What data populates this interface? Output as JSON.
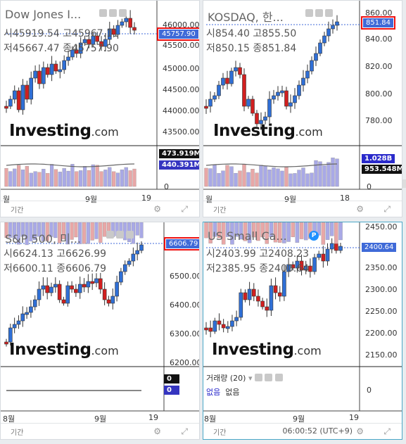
{
  "charts": [
    {
      "title": "Dow Jones I...",
      "ohlc": {
        "open_label": "시",
        "open": "45919.54",
        "high_label": "고",
        "high": "45967.11",
        "low_label": "저",
        "low": "45667.47",
        "close_label": "종",
        "close": "45757.90"
      },
      "price": "45757.90",
      "y_ticks": [
        "46000.00",
        "45500.00",
        "45000.00",
        "44500.00",
        "44000.00",
        "43500.00"
      ],
      "volume_tags": [
        "473.919M",
        "440.391M"
      ],
      "vol_zero": "0",
      "x_ticks": [
        "월",
        "9월",
        "19"
      ],
      "footer_label": "기간"
    },
    {
      "title": "KOSDAQ, 한...",
      "ohlc": {
        "open_label": "시",
        "open": "854.40",
        "high_label": "고",
        "high": "855.50",
        "low_label": "저",
        "low": "850.15",
        "close_label": "종",
        "close": "851.84"
      },
      "price": "851.84",
      "y_ticks": [
        "860.00",
        "840.00",
        "820.00",
        "800.00",
        "780.00"
      ],
      "volume_tags": [
        "1.028B",
        "953.548M"
      ],
      "vol_zero": "0",
      "x_ticks": [
        "월",
        "9월",
        "18"
      ],
      "footer_label": "기간"
    },
    {
      "title": "S&P 500, 미...",
      "ohlc": {
        "open_label": "시",
        "open": "6624.13",
        "high_label": "고",
        "high": "6626.99",
        "low_label": "저",
        "low": "6600.11",
        "close_label": "종",
        "close": "6606.79"
      },
      "price": "6606.79",
      "y_ticks": [
        "6500.00",
        "6400.00",
        "6300.00",
        "6200.00"
      ],
      "volume_tags": [
        "0",
        "0"
      ],
      "x_ticks": [
        "8월",
        "9월",
        "19"
      ],
      "footer_label": "기간"
    },
    {
      "title": "US Small Ca...",
      "badge": "P",
      "ohlc": {
        "open_label": "시",
        "open": "2403.99",
        "high_label": "고",
        "high": "2408.23",
        "low_label": "저",
        "low": "2385.95",
        "close_label": "종",
        "close": "2400.64"
      },
      "price": "2400.64",
      "y_ticks": [
        "2450.00",
        "2400.00",
        "2350.00",
        "2300.00",
        "2250.00",
        "2200.00",
        "2150.00"
      ],
      "sub_title": "거래량 (20)",
      "sub_values": [
        "없음",
        "없음"
      ],
      "sub_zero": "0",
      "x_ticks": [
        "8월",
        "9월",
        "19"
      ],
      "footer_label": "기간",
      "time": "06:00:52",
      "tz": "(UTC+9)"
    }
  ],
  "logo": {
    "main": "Investing",
    "dot": ".com"
  },
  "colors": {
    "up": "#2f6fd6",
    "down": "#d21f1f",
    "tag": "#3f6ad8",
    "highlight": "#e11111"
  }
}
